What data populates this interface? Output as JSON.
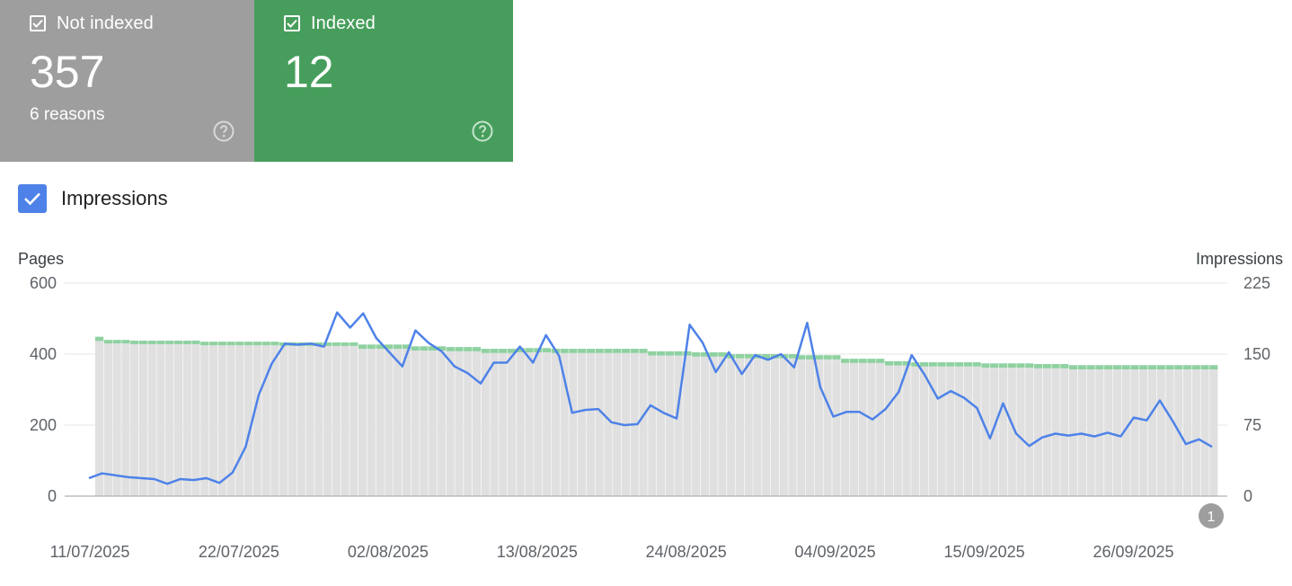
{
  "cards": {
    "not_indexed": {
      "title": "Not indexed",
      "count": "357",
      "subtitle": "6 reasons",
      "color": "#9e9e9e"
    },
    "indexed": {
      "title": "Indexed",
      "count": "12",
      "color": "#479e5c"
    }
  },
  "impressions_toggle": {
    "label": "Impressions",
    "checked": true,
    "color": "#4e82e8"
  },
  "annotation_badge": "1",
  "chart_data": {
    "type": "bar",
    "left_axis": {
      "label": "Pages",
      "ticks": [
        "0",
        "200",
        "400",
        "600"
      ],
      "ylim": [
        0,
        600
      ]
    },
    "right_axis": {
      "label": "Impressions",
      "ticks": [
        "0",
        "75",
        "150",
        "225"
      ],
      "ylim": [
        0,
        225
      ]
    },
    "x_tick_labels": [
      "11/07/2025",
      "22/07/2025",
      "02/08/2025",
      "13/08/2025",
      "24/08/2025",
      "04/09/2025",
      "15/09/2025",
      "26/09/2025"
    ],
    "grid": true,
    "series": [
      {
        "kind": "bar",
        "color": "#e0e0e0",
        "values": [
          437,
          430,
          430,
          430,
          428,
          428,
          428,
          428,
          428,
          428,
          428,
          428,
          425,
          425,
          425,
          425,
          425,
          425,
          425,
          425,
          425,
          423,
          423,
          423,
          423,
          423,
          423,
          423,
          423,
          423,
          415,
          415,
          415,
          415,
          415,
          415,
          410,
          410,
          410,
          410,
          408,
          408,
          408,
          408,
          403,
          403,
          403,
          403,
          405,
          405,
          405,
          405,
          403,
          403,
          403,
          403,
          403,
          403,
          403,
          403,
          403,
          403,
          403,
          396,
          396,
          396,
          396,
          396,
          393,
          393,
          393,
          393,
          388,
          388,
          388,
          388,
          388,
          388,
          388,
          388,
          385,
          385,
          385,
          385,
          385,
          375,
          375,
          375,
          375,
          375,
          368,
          368,
          368,
          365,
          365,
          365,
          365,
          365,
          365,
          365,
          365,
          362,
          362,
          362,
          362,
          362,
          362,
          360,
          360,
          360,
          360,
          357,
          357,
          357,
          357,
          357,
          357,
          357,
          357,
          357,
          357,
          357,
          357,
          357,
          357,
          357,
          357,
          357
        ]
      },
      {
        "kind": "bar",
        "color": "#8fd1a0",
        "values": [
          12,
          10,
          10,
          10,
          10,
          10,
          10,
          10,
          10,
          10,
          10,
          10,
          10,
          10,
          10,
          10,
          10,
          10,
          10,
          10,
          10,
          10,
          10,
          10,
          10,
          10,
          10,
          10,
          10,
          10,
          12,
          12,
          12,
          12,
          12,
          12,
          12,
          12,
          12,
          12,
          12,
          12,
          12,
          12,
          12,
          12,
          12,
          12,
          12,
          12,
          12,
          12,
          12,
          12,
          12,
          12,
          12,
          12,
          12,
          12,
          12,
          12,
          12,
          12,
          12,
          12,
          12,
          12,
          12,
          12,
          12,
          12,
          12,
          12,
          12,
          12,
          12,
          12,
          12,
          12,
          12,
          12,
          12,
          12,
          12,
          12,
          12,
          12,
          12,
          12,
          12,
          12,
          12,
          12,
          12,
          12,
          12,
          12,
          12,
          12,
          12,
          12,
          12,
          12,
          12,
          12,
          12,
          12,
          12,
          12,
          12,
          12,
          12,
          12,
          12,
          12,
          12,
          12,
          12,
          12,
          12,
          12,
          12,
          12,
          12,
          12,
          12,
          12
        ]
      },
      {
        "kind": "line",
        "axis": "right",
        "color": "#4e82e8",
        "values": [
          19,
          24,
          22,
          20,
          19,
          18,
          13,
          18,
          17,
          19,
          14,
          25,
          52,
          107,
          140,
          161,
          160,
          161,
          158,
          194,
          178,
          193,
          167,
          152,
          137,
          175,
          162,
          153,
          137,
          130,
          119,
          141,
          141,
          158,
          141,
          170,
          148,
          88,
          91,
          92,
          78,
          75,
          76,
          96,
          88,
          82,
          181,
          162,
          131,
          152,
          129,
          149,
          144,
          150,
          136,
          183,
          115,
          84,
          89,
          89,
          81,
          92,
          110,
          149,
          128,
          103,
          111,
          104,
          93,
          61,
          98,
          66,
          53,
          62,
          66,
          64,
          66,
          63,
          67,
          63,
          83,
          80,
          101,
          79,
          55,
          60,
          52
        ]
      }
    ]
  }
}
